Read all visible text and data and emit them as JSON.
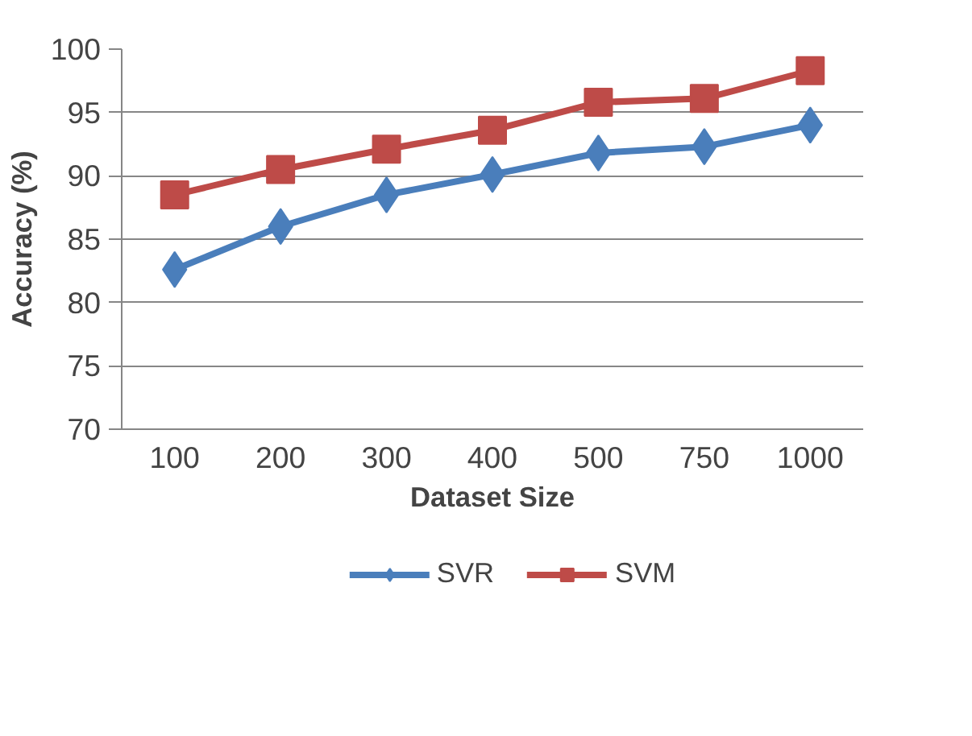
{
  "chart_data": {
    "type": "line",
    "xlabel": "Dataset Size",
    "ylabel": "Accuracy (%)",
    "categories": [
      "100",
      "200",
      "300",
      "400",
      "500",
      "750",
      "1000"
    ],
    "series": [
      {
        "name": "SVR",
        "color": "#4a7ebb",
        "marker": "diamond",
        "values": [
          82.6,
          86.0,
          88.5,
          90.1,
          91.8,
          92.3,
          94.0
        ]
      },
      {
        "name": "SVM",
        "color": "#be4b48",
        "marker": "square",
        "values": [
          88.5,
          90.5,
          92.1,
          93.6,
          95.8,
          96.1,
          98.3
        ]
      }
    ],
    "ylim": [
      70,
      100
    ],
    "yticks": [
      70,
      75,
      80,
      85,
      90,
      95,
      100
    ],
    "grid": "y",
    "legend": "bottom"
  }
}
